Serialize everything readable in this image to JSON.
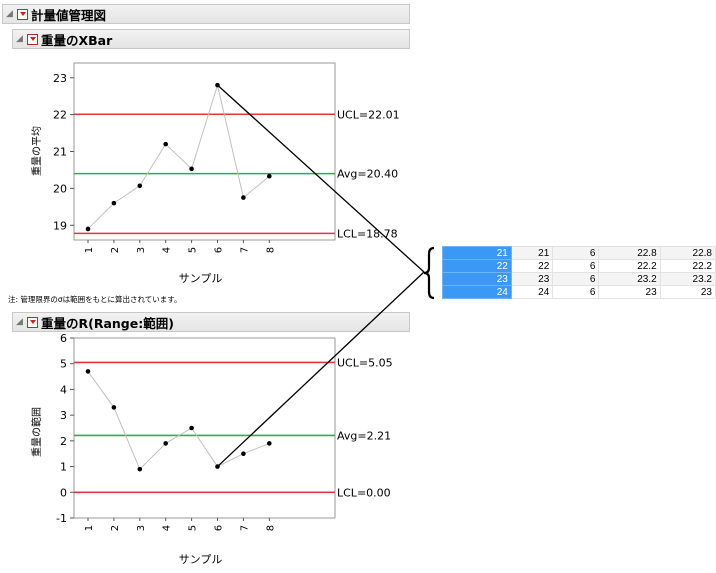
{
  "outline": {
    "root_title": "計量値管理図",
    "xbar_title": "重量のXBar",
    "r_title": "重量のR(Range:範囲)",
    "note": "注: 管理限界のσは範囲をもとに算出されています。"
  },
  "chart_data": [
    {
      "type": "line",
      "name": "xbar",
      "x": [
        1,
        2,
        3,
        4,
        5,
        6,
        7,
        8
      ],
      "y": [
        18.9,
        19.6,
        20.07,
        21.2,
        20.53,
        22.8,
        19.75,
        20.33
      ],
      "xlabel": "サンプル",
      "ylabel": "重量の平均",
      "ylim": [
        18.6,
        23.4
      ],
      "yticks": [
        "19",
        "20",
        "21",
        "22",
        "23"
      ],
      "xticks": [
        "1",
        "2",
        "3",
        "4",
        "5",
        "6",
        "7",
        "8"
      ],
      "limits": {
        "ucl": 22.01,
        "avg": 20.4,
        "lcl": 18.78
      },
      "limit_labels": {
        "ucl": "UCL=22.01",
        "avg": "Avg=20.40",
        "lcl": "LCL=18.78"
      },
      "highlight_x": 6
    },
    {
      "type": "line",
      "name": "range",
      "x": [
        1,
        2,
        3,
        4,
        5,
        6,
        7,
        8
      ],
      "y": [
        4.7,
        3.3,
        0.9,
        1.9,
        2.5,
        1.0,
        1.5,
        1.9
      ],
      "xlabel": "サンプル",
      "ylabel": "重量の範囲",
      "ylim": [
        -1,
        6
      ],
      "yticks": [
        "-1",
        "0",
        "1",
        "2",
        "3",
        "4",
        "5",
        "6"
      ],
      "xticks": [
        "1",
        "2",
        "3",
        "4",
        "5",
        "6",
        "7",
        "8"
      ],
      "limits": {
        "ucl": 5.05,
        "avg": 2.21,
        "lcl": 0.0
      },
      "limit_labels": {
        "ucl": "UCL=5.05",
        "avg": "Avg=2.21",
        "lcl": "LCL=0.00"
      },
      "highlight_x": 6
    }
  ],
  "table": {
    "rows": [
      {
        "row": "21",
        "cells": [
          "21",
          "6",
          "22.8",
          "22.8"
        ]
      },
      {
        "row": "22",
        "cells": [
          "22",
          "6",
          "22.2",
          "22.2"
        ]
      },
      {
        "row": "23",
        "cells": [
          "23",
          "6",
          "23.2",
          "23.2"
        ]
      },
      {
        "row": "24",
        "cells": [
          "24",
          "6",
          "23",
          "23"
        ]
      }
    ]
  },
  "colors": {
    "ucl_lcl": "#e8333b",
    "avg": "#22b14c",
    "series": "#c0c0c0",
    "point": "#000000",
    "selected_row": "#3b98f5"
  }
}
